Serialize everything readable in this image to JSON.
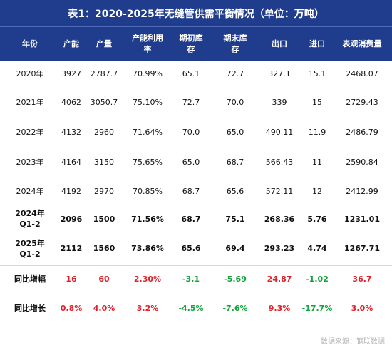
{
  "title": "表1：2020-2025年无缝管供需平衡情况（单位：万吨）",
  "headers": [
    "年份",
    "产能",
    "产量",
    "产能利用\n率",
    "期初库\n存",
    "期末库\n存",
    "出口",
    "进口",
    "表观消费量"
  ],
  "rows": [
    {
      "cells": [
        "2020年",
        "3927",
        "2787.7",
        "70.99%",
        "65.1",
        "72.7",
        "327.1",
        "15.1",
        "2468.07"
      ]
    },
    {
      "cells": [
        "2021年",
        "4062",
        "3050.7",
        "75.10%",
        "72.7",
        "70.0",
        "339",
        "15",
        "2729.43"
      ]
    },
    {
      "cells": [
        "2022年",
        "4132",
        "2960",
        "71.64%",
        "70.0",
        "65.0",
        "490.11",
        "11.9",
        "2486.79"
      ]
    },
    {
      "cells": [
        "2023年",
        "4164",
        "3150",
        "75.65%",
        "65.0",
        "68.7",
        "566.43",
        "11",
        "2590.84"
      ]
    },
    {
      "cells": [
        "2024年",
        "4192",
        "2970",
        "70.85%",
        "68.7",
        "65.6",
        "572.11",
        "12",
        "2412.99"
      ]
    },
    {
      "cells": [
        "2024年\nQ1-2",
        "2096",
        "1500",
        "71.56%",
        "68.7",
        "75.1",
        "268.36",
        "5.76",
        "1231.01"
      ]
    },
    {
      "cells": [
        "2025年\nQ1-2",
        "2112",
        "1560",
        "73.86%",
        "65.6",
        "69.4",
        "293.23",
        "4.74",
        "1267.71"
      ]
    },
    {
      "cells": [
        "同比增幅",
        "16",
        "60",
        "2.30%",
        "-3.1",
        "-5.69",
        "24.87",
        "-1.02",
        "36.7"
      ]
    },
    {
      "cells": [
        "同比增长",
        "0.8%",
        "4.0%",
        "3.2%",
        "-4.5%",
        "-7.6%",
        "9.3%",
        "-17.7%",
        "3.0%"
      ]
    }
  ],
  "source": "数据来源：钢联数据",
  "colors": {
    "header_bg": "#1f3d8c",
    "positive": "#e0202a",
    "negative": "#15a33c"
  }
}
